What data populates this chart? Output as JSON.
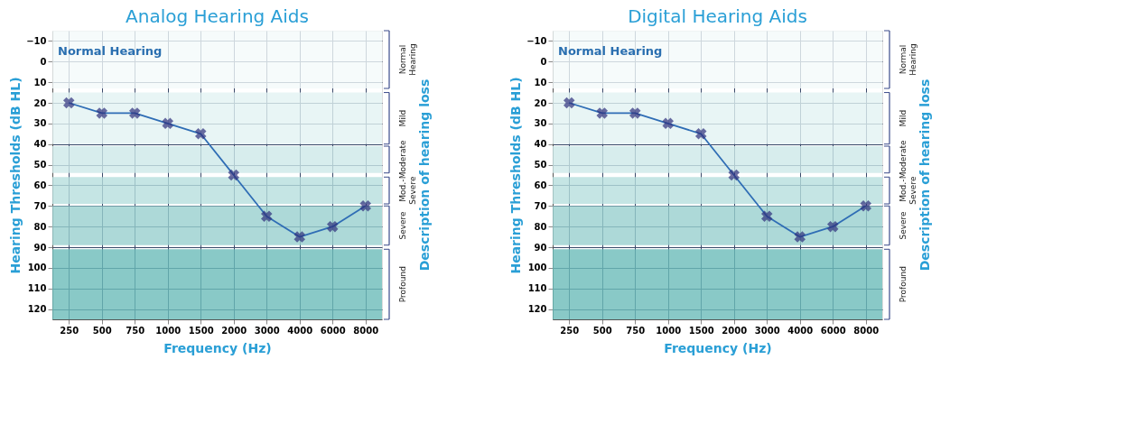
{
  "chart_data": [
    {
      "type": "line",
      "title": "Analog Hearing Aids",
      "xlabel": "Frequency (Hz)",
      "ylabel": "Hearing Thresholds (dB HL)",
      "y2label": "Description of hearing loss",
      "categories": [
        "250",
        "500",
        "750",
        "1000",
        "1500",
        "2000",
        "3000",
        "4000",
        "6000",
        "8000"
      ],
      "series": [
        {
          "color": "#2f6db5",
          "values": [
            20,
            25,
            25,
            30,
            35,
            55,
            75,
            85,
            80,
            70
          ]
        }
      ],
      "ylim": [
        125,
        -15
      ],
      "yticks": [
        -10,
        0,
        10,
        20,
        30,
        40,
        50,
        60,
        70,
        80,
        90,
        100,
        110,
        120
      ],
      "grid": true,
      "marker": "cross",
      "line_style": "solid",
      "legend": false,
      "annotations": [
        "Normal Hearing"
      ],
      "bands": [
        {
          "axis": "y",
          "from": -15,
          "to": 13,
          "label": "Normal Hearing",
          "color": "#f4fafa"
        },
        {
          "axis": "y",
          "from": 15,
          "to": 40,
          "label": "Mild",
          "color": "#e2f2f2"
        },
        {
          "axis": "y",
          "from": 41,
          "to": 54,
          "label": "Moderate",
          "color": "#cde8e8"
        },
        {
          "axis": "y",
          "from": 56,
          "to": 69,
          "label": "Mod.- Severe",
          "color": "#b6dedd"
        },
        {
          "axis": "y",
          "from": 70,
          "to": 89,
          "label": "Severe",
          "color": "#98d0ce"
        },
        {
          "axis": "y",
          "from": 91,
          "to": 125,
          "label": "Profound",
          "color": "#6cbcb9"
        }
      ]
    },
    {
      "type": "line",
      "title": "Digital Hearing Aids",
      "xlabel": "Frequency (Hz)",
      "ylabel": "Hearing Thresholds (dB HL)",
      "y2label": "Description of hearing loss",
      "categories": [
        "250",
        "500",
        "750",
        "1000",
        "1500",
        "2000",
        "3000",
        "4000",
        "6000",
        "8000"
      ],
      "series": [
        {
          "color": "#2f6db5",
          "values": [
            20,
            25,
            25,
            30,
            35,
            55,
            75,
            85,
            80,
            70
          ]
        }
      ],
      "ylim": [
        125,
        -15
      ],
      "yticks": [
        -10,
        0,
        10,
        20,
        30,
        40,
        50,
        60,
        70,
        80,
        90,
        100,
        110,
        120
      ],
      "grid": true,
      "marker": "cross",
      "line_style": "solid",
      "legend": false,
      "annotations": [
        "Normal Hearing"
      ],
      "bands": [
        {
          "axis": "y",
          "from": -15,
          "to": 13,
          "label": "Normal Hearing",
          "color": "#f4fafa"
        },
        {
          "axis": "y",
          "from": 15,
          "to": 40,
          "label": "Mild",
          "color": "#e2f2f2"
        },
        {
          "axis": "y",
          "from": 41,
          "to": 54,
          "label": "Moderate",
          "color": "#cde8e8"
        },
        {
          "axis": "y",
          "from": 56,
          "to": 69,
          "label": "Mod.- Severe",
          "color": "#b6dedd"
        },
        {
          "axis": "y",
          "from": 70,
          "to": 89,
          "label": "Severe",
          "color": "#98d0ce"
        },
        {
          "axis": "y",
          "from": 91,
          "to": 125,
          "label": "Profound",
          "color": "#6cbcb9"
        }
      ]
    }
  ]
}
